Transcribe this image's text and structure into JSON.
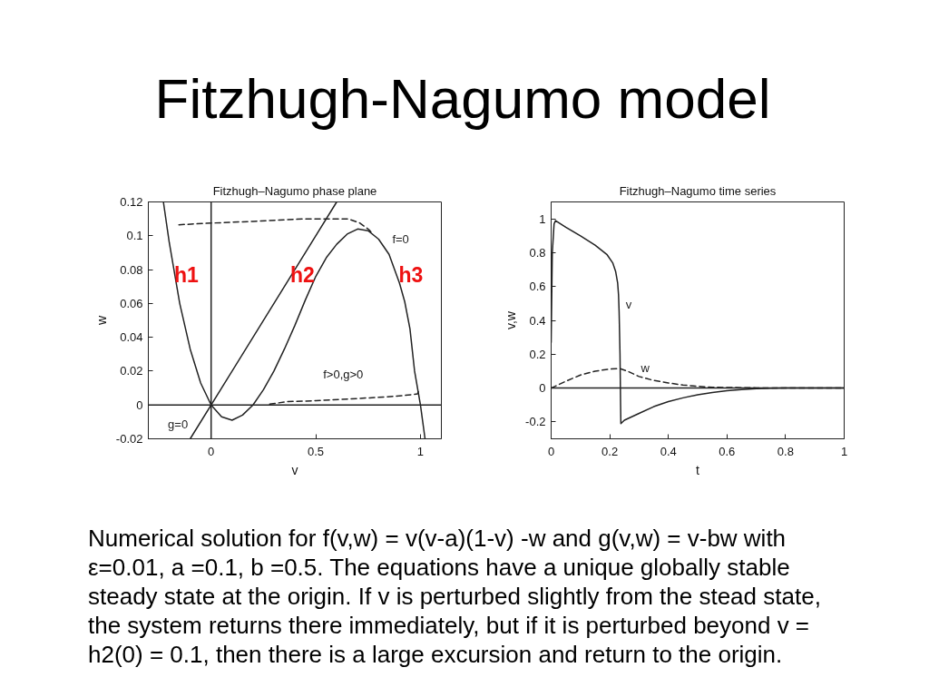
{
  "chart_data": [
    {
      "type": "other",
      "title": "Fitzhugh-Nagumo model"
    },
    {
      "type": "line",
      "title": "Fitzhugh–Nagumo phase plane",
      "xlabel": "v",
      "ylabel": "w",
      "xlim": [
        -0.3,
        1.1
      ],
      "ylim": [
        -0.02,
        0.12
      ],
      "xticks": [
        0,
        0.5,
        1
      ],
      "yticks": [
        -0.02,
        0,
        0.02,
        0.04,
        0.06,
        0.08,
        0.1,
        0.12
      ],
      "grid": false,
      "series": [
        {
          "name": "f=0",
          "color": "#222222",
          "line_style": "solid",
          "x": [
            -0.228,
            -0.2,
            -0.15,
            -0.1,
            -0.05,
            0,
            0.05,
            0.1,
            0.15,
            0.2,
            0.25,
            0.3,
            0.35,
            0.4,
            0.45,
            0.5,
            0.55,
            0.6,
            0.65,
            0.7,
            0.75,
            0.8,
            0.85,
            0.9,
            0.925,
            0.95,
            0.972,
            1.0,
            1.022
          ],
          "values": [
            0.12,
            0.096,
            0.06,
            0.033,
            0.013,
            0,
            -0.007,
            -0.009,
            -0.006,
            0,
            0.009,
            0.02,
            0.033,
            0.047,
            0.062,
            0.076,
            0.087,
            0.095,
            0.101,
            0.104,
            0.103,
            0.098,
            0.089,
            0.072,
            0.061,
            0.045,
            0.02,
            0,
            -0.02
          ]
        },
        {
          "name": "g=0",
          "color": "#222222",
          "line_style": "solid",
          "x": [
            -0.1,
            0.6
          ],
          "values": [
            -0.02,
            0.12
          ]
        },
        {
          "color": "#222222",
          "line_style": "dashed",
          "x": [
            0.28,
            0.365,
            0.5,
            0.654,
            0.8,
            0.913,
            0.986,
            0.993
          ],
          "values": [
            0.0005,
            0.002,
            0.0025,
            0.0035,
            0.0045,
            0.0055,
            0.0065,
            0.009
          ]
        },
        {
          "color": "#222222",
          "line_style": "dashed",
          "x": [
            -0.154,
            0,
            0.2,
            0.45,
            0.654,
            0.711,
            0.755,
            0.769
          ],
          "values": [
            0.1065,
            0.1075,
            0.1085,
            0.11,
            0.11,
            0.1075,
            0.1035,
            0.1015
          ]
        }
      ],
      "ref_lines": [
        {
          "axis": "x",
          "value": 0,
          "color": "#222222"
        },
        {
          "axis": "y",
          "value": 0,
          "color": "#222222"
        }
      ],
      "annotations": [
        "h1",
        "h2",
        "h3",
        "f>0,g>0"
      ]
    },
    {
      "type": "line",
      "title": "Fitzhugh–Nagumo time series",
      "xlabel": "t",
      "ylabel": "v,w",
      "xlim": [
        0,
        1
      ],
      "ylim": [
        -0.3,
        1.1
      ],
      "xticks": [
        0,
        0.2,
        0.4,
        0.6,
        0.8,
        1
      ],
      "yticks": [
        -0.2,
        0,
        0.2,
        0.4,
        0.6,
        0.8,
        1
      ],
      "grid": false,
      "series": [
        {
          "name": "v",
          "color": "#222222",
          "line_style": "solid",
          "x": [
            0,
            0.004,
            0.01,
            0.015,
            0.05,
            0.1,
            0.15,
            0.19,
            0.21,
            0.22,
            0.227,
            0.23,
            0.232,
            0.235,
            0.237,
            0.238,
            0.25,
            0.3,
            0.35,
            0.4,
            0.45,
            0.5,
            0.55,
            0.6,
            0.65,
            0.7,
            0.75,
            0.8,
            0.9,
            1.0
          ],
          "values": [
            0.27,
            0.8,
            0.97,
            0.99,
            0.95,
            0.9,
            0.845,
            0.79,
            0.74,
            0.69,
            0.62,
            0.55,
            0.45,
            0.2,
            -0.1,
            -0.21,
            -0.19,
            -0.15,
            -0.11,
            -0.08,
            -0.058,
            -0.04,
            -0.026,
            -0.016,
            -0.009,
            -0.004,
            -0.001,
            0,
            0,
            0
          ]
        },
        {
          "name": "w",
          "color": "#222222",
          "line_style": "dashed",
          "x": [
            0,
            0.05,
            0.1,
            0.15,
            0.2,
            0.235,
            0.26,
            0.3,
            0.35,
            0.4,
            0.45,
            0.5,
            0.55,
            0.6,
            0.7,
            0.8,
            1.0
          ],
          "values": [
            0,
            0.04,
            0.077,
            0.1,
            0.112,
            0.115,
            0.1,
            0.068,
            0.045,
            0.03,
            0.018,
            0.01,
            0.005,
            0.003,
            0.001,
            0,
            0
          ]
        }
      ],
      "ref_lines": [
        {
          "axis": "y",
          "value": 0,
          "color": "#222222"
        }
      ]
    },
    {
      "type": "other",
      "annotations": [
        "Numerical solution for f(v,w) = v(v-a)(1-v) -w and g(v,w) = v-bw with ε=0.01, a =0.1, b =0.5. The equations have a unique globally stable steady state at the origin. If v is perturbed slightly from the stead state, the system returns there immediately, but if it is perturbed beyond v = h2(0) = 0.1, then there is a large excursion and return to the origin."
      ]
    }
  ]
}
